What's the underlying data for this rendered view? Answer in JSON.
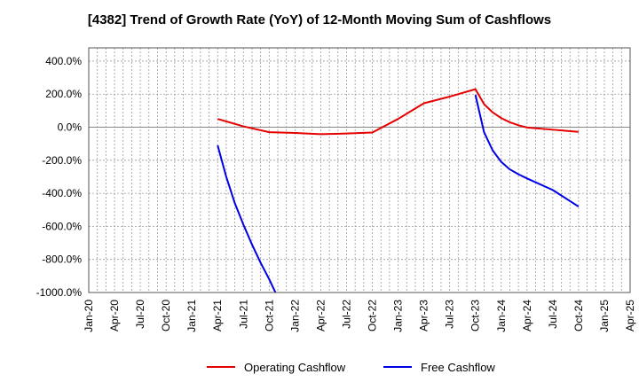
{
  "chart_data": {
    "type": "line",
    "title": "[4382]  Trend of Growth Rate (YoY) of 12-Month Moving Sum of Cashflows",
    "xlabel": "",
    "ylabel": "",
    "ylim": [
      -1000,
      480
    ],
    "y_ticks": [
      400,
      200,
      0,
      -200,
      -400,
      -600,
      -800,
      -1000
    ],
    "y_tick_labels": [
      "400.0%",
      "200.0%",
      "0.0%",
      "-200.0%",
      "-400.0%",
      "-600.0%",
      "-800.0%",
      "-1000.0%"
    ],
    "x_ticks": [
      "2020-01",
      "2020-04",
      "2020-07",
      "2020-10",
      "2021-01",
      "2021-04",
      "2021-07",
      "2021-10",
      "2022-01",
      "2022-04",
      "2022-07",
      "2022-10",
      "2023-01",
      "2023-04",
      "2023-07",
      "2023-10",
      "2024-01",
      "2024-04",
      "2024-07",
      "2024-10",
      "2025-01",
      "2025-04"
    ],
    "x_tick_labels": [
      "Jan-20",
      "Apr-20",
      "Jul-20",
      "Oct-20",
      "Jan-21",
      "Apr-21",
      "Jul-21",
      "Oct-21",
      "Jan-22",
      "Apr-22",
      "Jul-22",
      "Oct-22",
      "Jan-23",
      "Apr-23",
      "Jul-23",
      "Oct-23",
      "Jan-24",
      "Apr-24",
      "Jul-24",
      "Oct-24",
      "Jan-25",
      "Apr-25"
    ],
    "grid": true,
    "legend_position": "bottom",
    "series": [
      {
        "name": "Operating Cashflow",
        "color": "#e60000",
        "x": [
          "2021-04",
          "2021-07",
          "2021-10",
          "2022-01",
          "2022-04",
          "2022-07",
          "2022-10",
          "2023-01",
          "2023-04",
          "2023-07",
          "2023-10",
          "2023-11",
          "2023-12",
          "2024-01",
          "2024-02",
          "2024-03",
          "2024-04",
          "2024-07",
          "2024-10"
        ],
        "values": [
          50,
          5,
          -30,
          -35,
          -42,
          -38,
          -32,
          50,
          145,
          185,
          230,
          140,
          90,
          55,
          30,
          12,
          -2,
          -15,
          -28
        ]
      },
      {
        "name": "Free Cashflow",
        "color": "#0000e6",
        "x": [
          "2021-04",
          "2021-05",
          "2021-06",
          "2021-07",
          "2021-08",
          "2021-09",
          "2021-10",
          "2021-11",
          "2023-10",
          "2023-11",
          "2023-12",
          "2024-01",
          "2024-02",
          "2024-03",
          "2024-04",
          "2024-07",
          "2024-10"
        ],
        "values": [
          -110,
          -300,
          -460,
          -590,
          -710,
          -820,
          -920,
          -1030,
          195,
          -30,
          -140,
          -210,
          -255,
          -285,
          -310,
          -380,
          -480
        ]
      }
    ]
  }
}
